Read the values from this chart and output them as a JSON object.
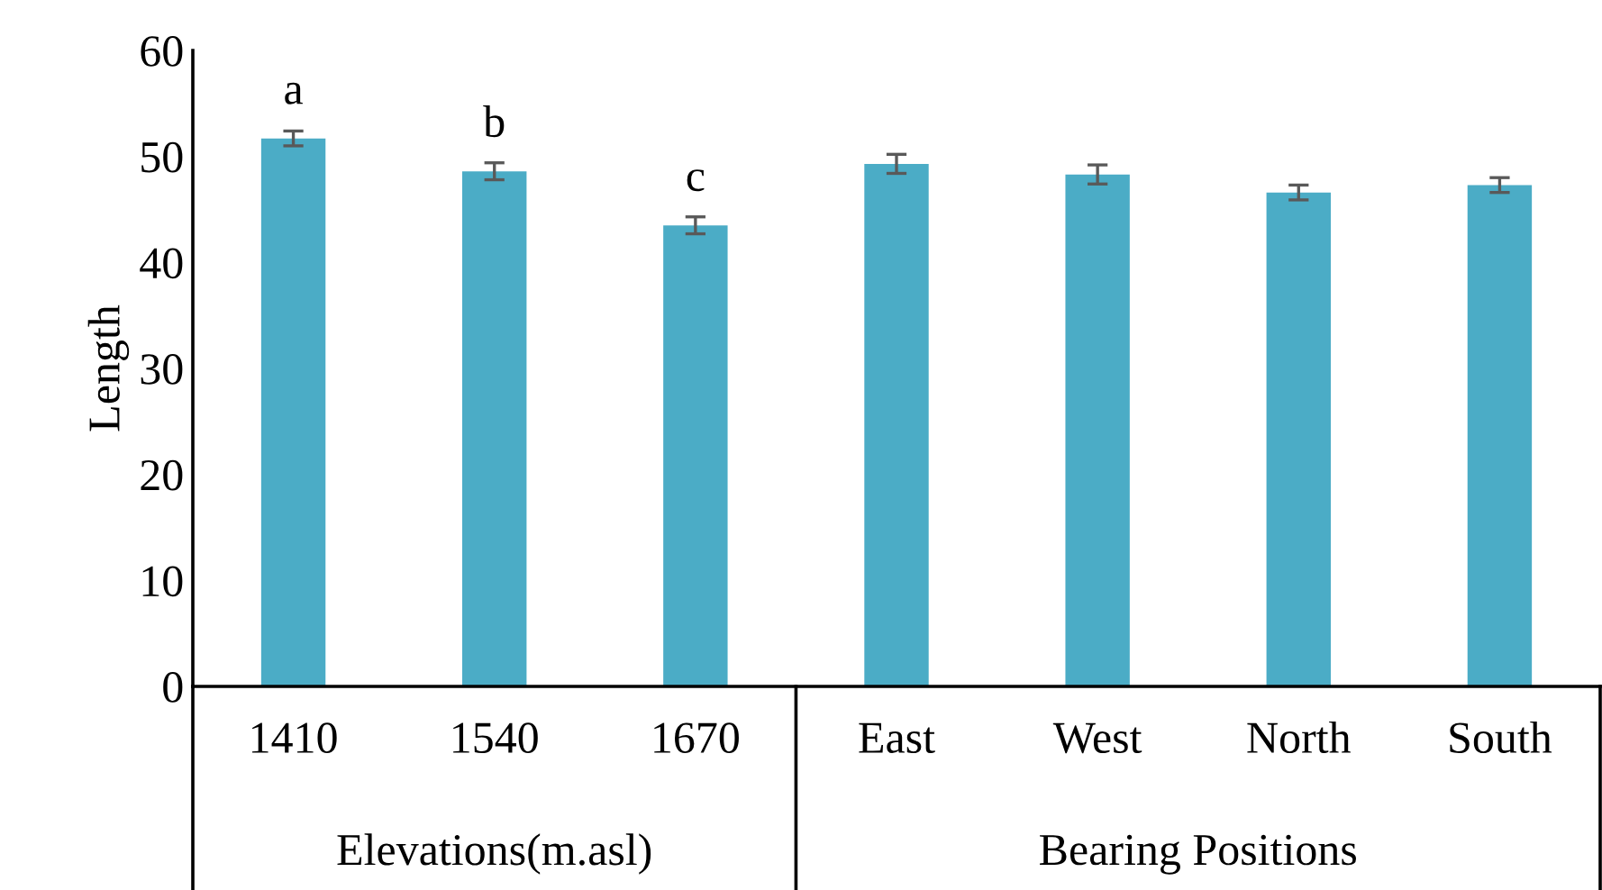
{
  "chart_data": {
    "type": "bar",
    "ylabel": "Length",
    "categories": [
      "1410",
      "1540",
      "1670",
      "East",
      "West",
      "North",
      "South"
    ],
    "series": [
      {
        "color": "#4bacc6",
        "values": [
          51.7,
          48.6,
          43.5,
          null,
          null,
          null,
          null
        ],
        "errors": [
          0.7,
          0.8,
          0.8,
          null,
          null,
          null,
          null
        ]
      },
      {
        "color": "#4bacc6",
        "values": [
          null,
          null,
          null,
          49.3,
          48.3,
          46.6,
          47.3
        ],
        "errors": [
          null,
          null,
          null,
          0.9,
          0.9,
          0.7,
          0.7
        ]
      }
    ],
    "ylim": [
      0,
      60
    ],
    "yticks": [
      0,
      10,
      20,
      30,
      40,
      50,
      60
    ],
    "grid": false,
    "legend": false,
    "annotations": [
      "Elevations(m.asl)",
      "Bearing Positions",
      {
        "text": "a",
        "x": "1410",
        "y": 51.7
      },
      {
        "text": "b",
        "x": "1540",
        "y": 48.6
      },
      {
        "text": "c",
        "x": "1670",
        "y": 43.5
      }
    ]
  }
}
